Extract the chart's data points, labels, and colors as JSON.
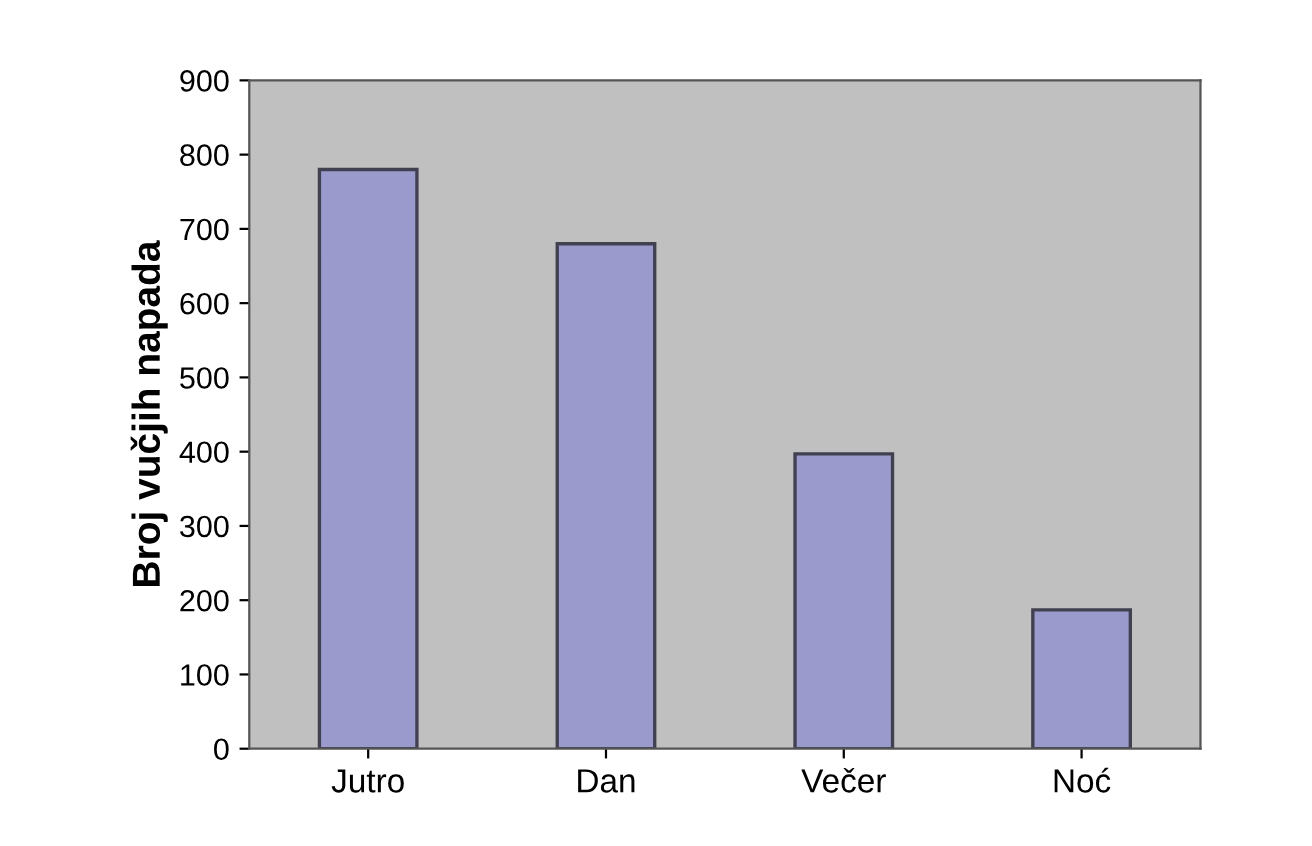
{
  "chart_data": {
    "type": "bar",
    "ylabel": "Broj vučjih napada",
    "categories": [
      "Jutro",
      "Dan",
      "Večer",
      "Noć"
    ],
    "values": [
      780,
      680,
      397,
      187
    ],
    "color": "#9a9acc",
    "ylim": [
      0,
      900
    ],
    "yticks": [
      0,
      100,
      200,
      300,
      400,
      500,
      600,
      700,
      800,
      900
    ],
    "grid": false
  }
}
